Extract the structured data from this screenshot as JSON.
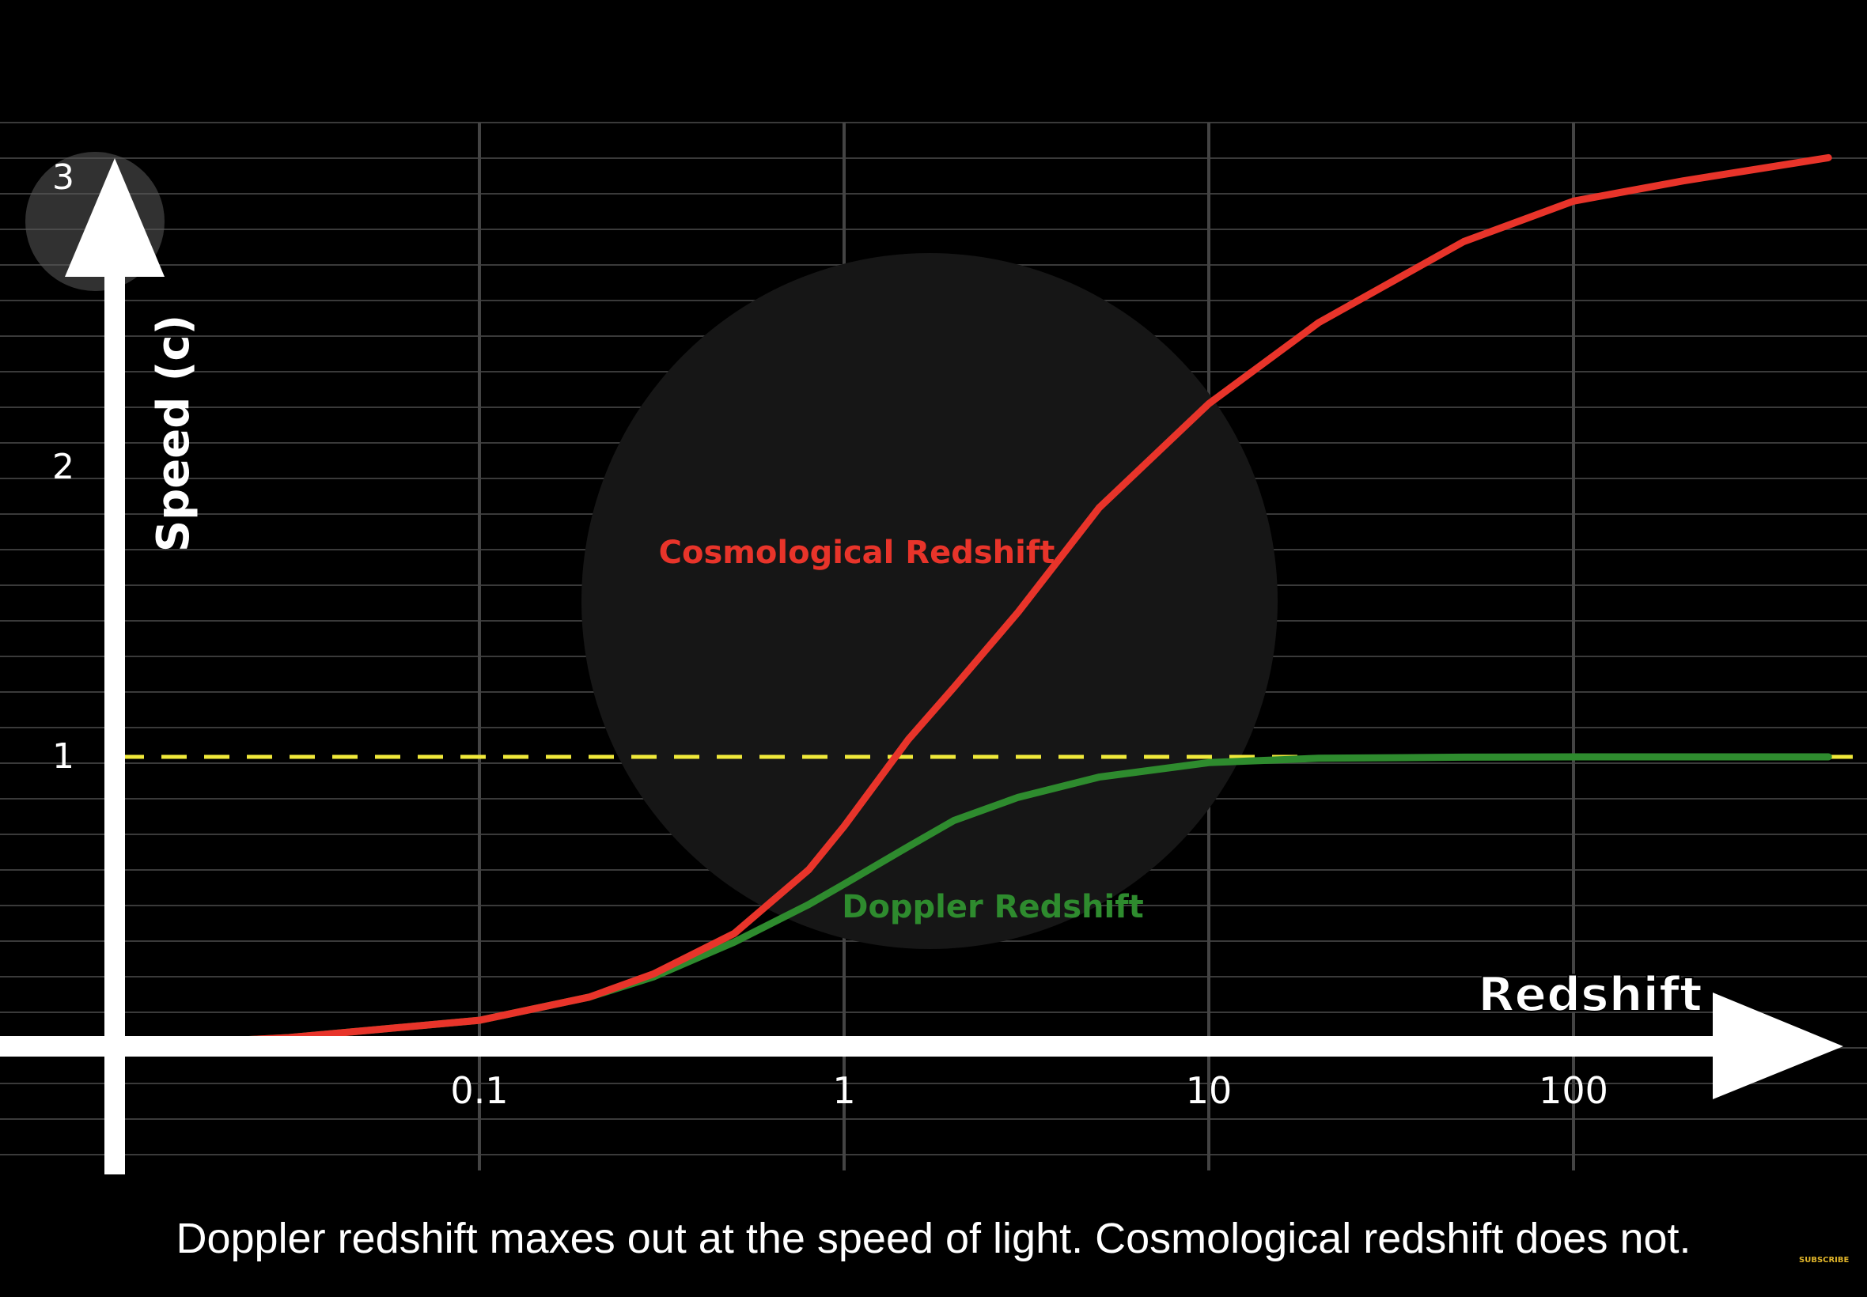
{
  "chart_data": {
    "type": "line",
    "x_scale": "log",
    "xlim": [
      0.01,
      500
    ],
    "ylim": [
      0,
      3
    ],
    "grid": true,
    "xlabel": "Redshift",
    "ylabel": "Speed (c)",
    "x_ticks": [
      {
        "value": 0.1,
        "label": "0.1"
      },
      {
        "value": 1,
        "label": "1"
      },
      {
        "value": 10,
        "label": "10"
      },
      {
        "value": 100,
        "label": "100"
      }
    ],
    "y_ticks": [
      {
        "value": 1,
        "label": "1"
      },
      {
        "value": 2,
        "label": "2"
      },
      {
        "value": 3,
        "label": "3"
      }
    ],
    "reference_line": {
      "y": 1,
      "color": "#f0e93a",
      "style": "dashed"
    },
    "series": [
      {
        "name": "Cosmological Redshift",
        "color": "#e8342a",
        "x": [
          0.01,
          0.03,
          0.1,
          0.2,
          0.3,
          0.5,
          0.8,
          1,
          1.5,
          2,
          3,
          5,
          10,
          20,
          50,
          100,
          200,
          500
        ],
        "y": [
          0.0,
          0.03,
          0.09,
          0.17,
          0.25,
          0.39,
          0.61,
          0.76,
          1.06,
          1.24,
          1.5,
          1.86,
          2.22,
          2.5,
          2.78,
          2.92,
          2.99,
          3.07
        ]
      },
      {
        "name": "Doppler Redshift",
        "color": "#2e8b2e",
        "x": [
          0.01,
          0.03,
          0.1,
          0.2,
          0.3,
          0.5,
          0.8,
          1,
          1.5,
          2,
          3,
          5,
          10,
          20,
          50,
          100,
          200,
          500
        ],
        "y": [
          0.0,
          0.03,
          0.09,
          0.17,
          0.24,
          0.36,
          0.49,
          0.56,
          0.69,
          0.78,
          0.86,
          0.93,
          0.98,
          0.995,
          0.999,
          1.0,
          1.0,
          1.0
        ]
      }
    ]
  },
  "caption": "Doppler redshift maxes out at the speed of light. Cosmological redshift does not.",
  "subscribe": "SUBSCRIBE",
  "colors": {
    "background": "#000000",
    "grid": "#3a3a3a",
    "axis": "#ffffff"
  }
}
